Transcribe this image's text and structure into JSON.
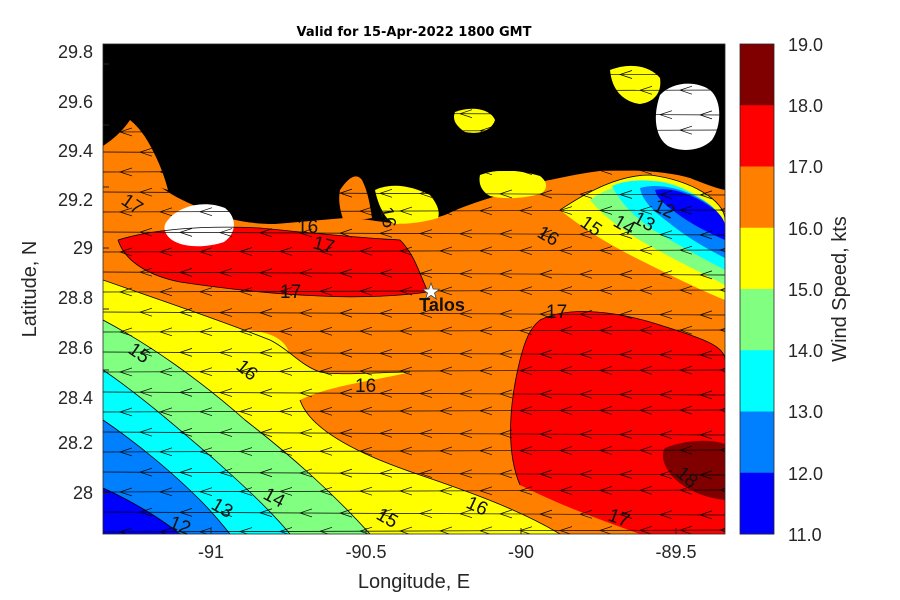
{
  "title": "Valid for 15-Apr-2022 1800 GMT",
  "axes": {
    "xlabel": "Longitude, E",
    "ylabel": "Latitude, N",
    "x_ticks": [
      "-91",
      "-90.5",
      "-90",
      "-89.5"
    ],
    "y_ticks": [
      "28",
      "28.2",
      "28.4",
      "28.6",
      "28.8",
      "29",
      "29.2",
      "29.4",
      "29.6",
      "29.8"
    ]
  },
  "colorbar": {
    "label": "Wind Speed, kts",
    "ticks": [
      "11.0",
      "12.0",
      "13.0",
      "14.0",
      "15.0",
      "16.0",
      "17.0",
      "18.0",
      "19.0"
    ],
    "colors": [
      "#0000ff",
      "#0080ff",
      "#00ffff",
      "#80ff80",
      "#ffff00",
      "#ff8000",
      "#ff0000",
      "#800000"
    ]
  },
  "station": {
    "name": "Talos"
  },
  "contour_labels": [
    {
      "text": "12"
    },
    {
      "text": "13"
    },
    {
      "text": "14"
    },
    {
      "text": "15"
    },
    {
      "text": "16"
    },
    {
      "text": "17"
    },
    {
      "text": "18"
    },
    {
      "text": "15"
    },
    {
      "text": "16"
    },
    {
      "text": "16"
    },
    {
      "text": "17"
    },
    {
      "text": "17"
    },
    {
      "text": "16"
    },
    {
      "text": "17"
    },
    {
      "text": "16"
    },
    {
      "text": "15"
    },
    {
      "text": "14"
    },
    {
      "text": "13"
    },
    {
      "text": "12"
    },
    {
      "text": "17"
    },
    {
      "text": "16"
    }
  ],
  "wind_direction": "easterly (arrows pointing west)",
  "map_colors": {
    "land": "#000000",
    "ocean_bg": "#ff8000"
  }
}
